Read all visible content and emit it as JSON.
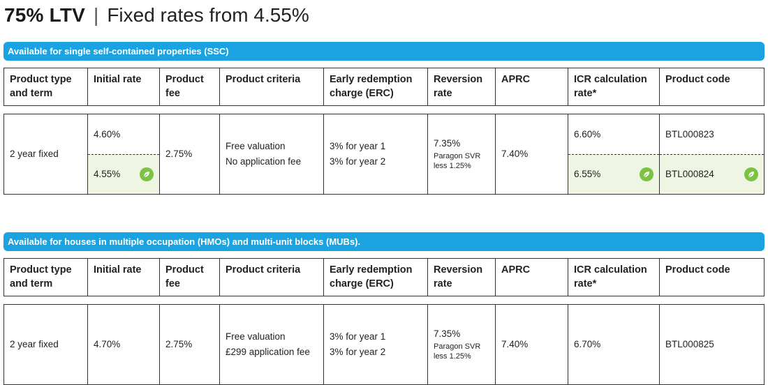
{
  "header": {
    "ltv": "75% LTV",
    "separator": "|",
    "title": "Fixed rates from 4.55%"
  },
  "columns": [
    "Product type and term",
    "Initial rate",
    "Product fee",
    "Product criteria",
    "Early redemption charge (ERC)",
    "Reversion rate",
    "APRC",
    "ICR calculation rate*",
    "Product code"
  ],
  "section1": {
    "banner": "Available for single self-contained properties (SSC)",
    "product_type": "2 year fixed",
    "initial_rate_top": "4.60%",
    "initial_rate_bottom": "4.55%",
    "product_fee": "2.75%",
    "criteria_line1": "Free valuation",
    "criteria_line2": "No application fee",
    "erc_line1": "3% for year 1",
    "erc_line2": "3% for year 2",
    "reversion_rate": "7.35%",
    "reversion_note1": "Paragon SVR",
    "reversion_note2": "less 1.25%",
    "aprc": "7.40%",
    "icr_top": "6.60%",
    "icr_bottom": "6.55%",
    "code_top": "BTL000823",
    "code_bottom": "BTL000824"
  },
  "section2": {
    "banner": "Available for houses in multiple occupation (HMOs) and multi-unit blocks (MUBs).",
    "product_type": "2 year fixed",
    "initial_rate": "4.70%",
    "product_fee": "2.75%",
    "criteria_line1": "Free valuation",
    "criteria_line2": "£299 application fee",
    "erc_line1": "3% for year 1",
    "erc_line2": "3% for year 2",
    "reversion_rate": "7.35%",
    "reversion_note1": "Paragon SVR",
    "reversion_note2": "less 1.25%",
    "aprc": "7.40%",
    "icr": "6.70%",
    "code": "BTL000825"
  },
  "colors": {
    "banner": "#1aa3e0",
    "green_row": "#eef5e2",
    "leaf_icon": "#7cc243"
  },
  "icons": [
    "leaf-icon"
  ]
}
